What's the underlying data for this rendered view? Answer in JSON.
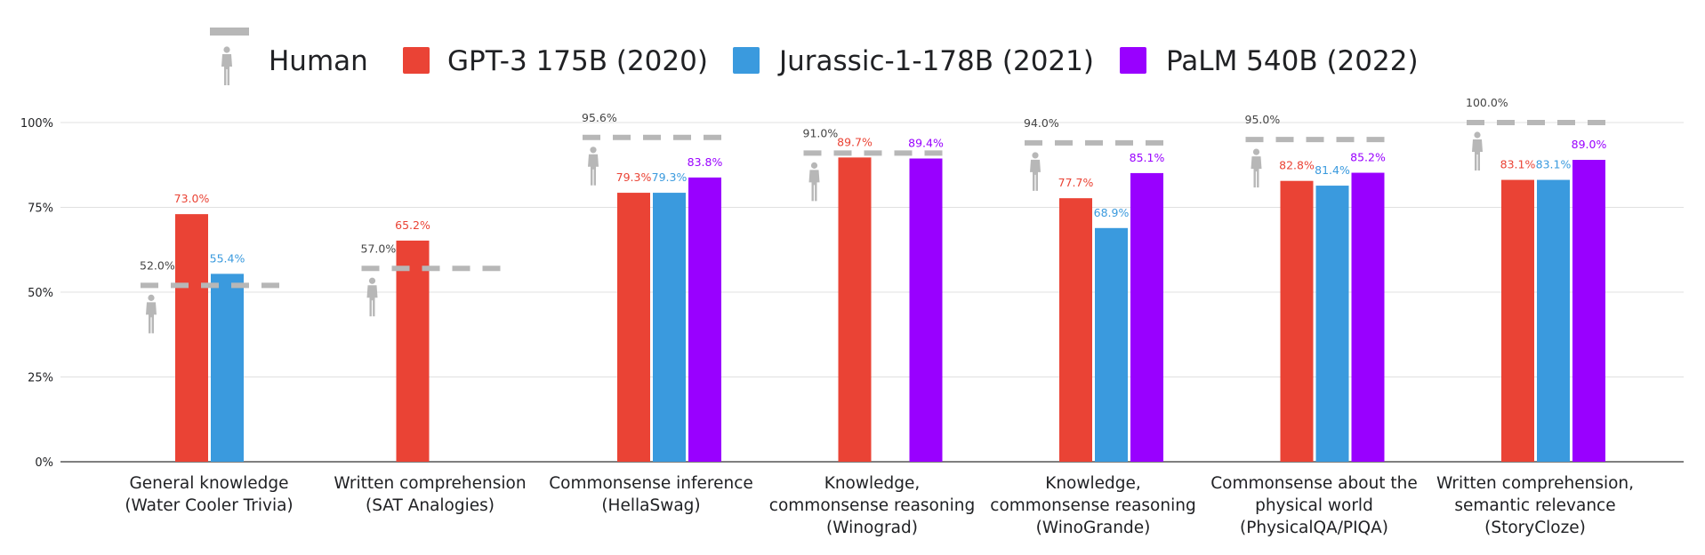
{
  "chart_data": {
    "type": "bar",
    "title": "",
    "xlabel": "",
    "ylabel": "",
    "ylim": [
      0,
      100
    ],
    "yticks": [
      "0%",
      "25%",
      "50%",
      "75%",
      "100%"
    ],
    "grid": true,
    "legend_position": "top",
    "categories": [
      [
        "General knowledge",
        "(Water Cooler Trivia)"
      ],
      [
        "Written comprehension",
        "(SAT Analogies)"
      ],
      [
        "Commonsense inference",
        "(HellaSwag)"
      ],
      [
        "Knowledge,",
        "commonsense reasoning",
        "(Winograd)"
      ],
      [
        "Knowledge,",
        "commonsense reasoning",
        "(WinoGrande)"
      ],
      [
        "Commonsense about the",
        "physical world",
        "(PhysicalQA/PIQA)"
      ],
      [
        "Written comprehension,",
        "semantic relevance",
        "(StoryCloze)"
      ]
    ],
    "human": {
      "name": "Human",
      "values": [
        52.0,
        57.0,
        95.6,
        91.0,
        94.0,
        95.0,
        100.0
      ],
      "labels": [
        "52.0%",
        "57.0%",
        "95.6%",
        "91.0%",
        "94.0%",
        "95.0%",
        "100.0%"
      ],
      "color": "#b7b7b7"
    },
    "series": [
      {
        "name": "GPT-3 175B (2020)",
        "color": "#ea4335",
        "values": [
          73.0,
          65.2,
          79.3,
          89.7,
          77.7,
          82.8,
          83.1
        ],
        "labels": [
          "73.0%",
          "65.2%",
          "79.3%",
          "89.7%",
          "77.7%",
          "82.8%",
          "83.1%"
        ]
      },
      {
        "name": "Jurassic-1-178B (2021)",
        "color": "#3a9ade",
        "values": [
          55.4,
          null,
          79.3,
          null,
          68.9,
          81.4,
          83.1
        ],
        "labels": [
          "55.4%",
          null,
          "79.3%",
          null,
          "68.9%",
          "81.4%",
          "83.1%"
        ]
      },
      {
        "name": "PaLM 540B (2022)",
        "color": "#9900ff",
        "values": [
          null,
          null,
          83.8,
          89.4,
          85.1,
          85.2,
          89.0
        ],
        "labels": [
          null,
          null,
          "83.8%",
          "89.4%",
          "85.1%",
          "85.2%",
          "89.0%"
        ]
      }
    ]
  },
  "icons": {
    "human": "person-icon"
  },
  "colors": {
    "grid": "#e0e0e0",
    "axis": "#333333",
    "text": "#202124",
    "human_label": "#444444"
  }
}
